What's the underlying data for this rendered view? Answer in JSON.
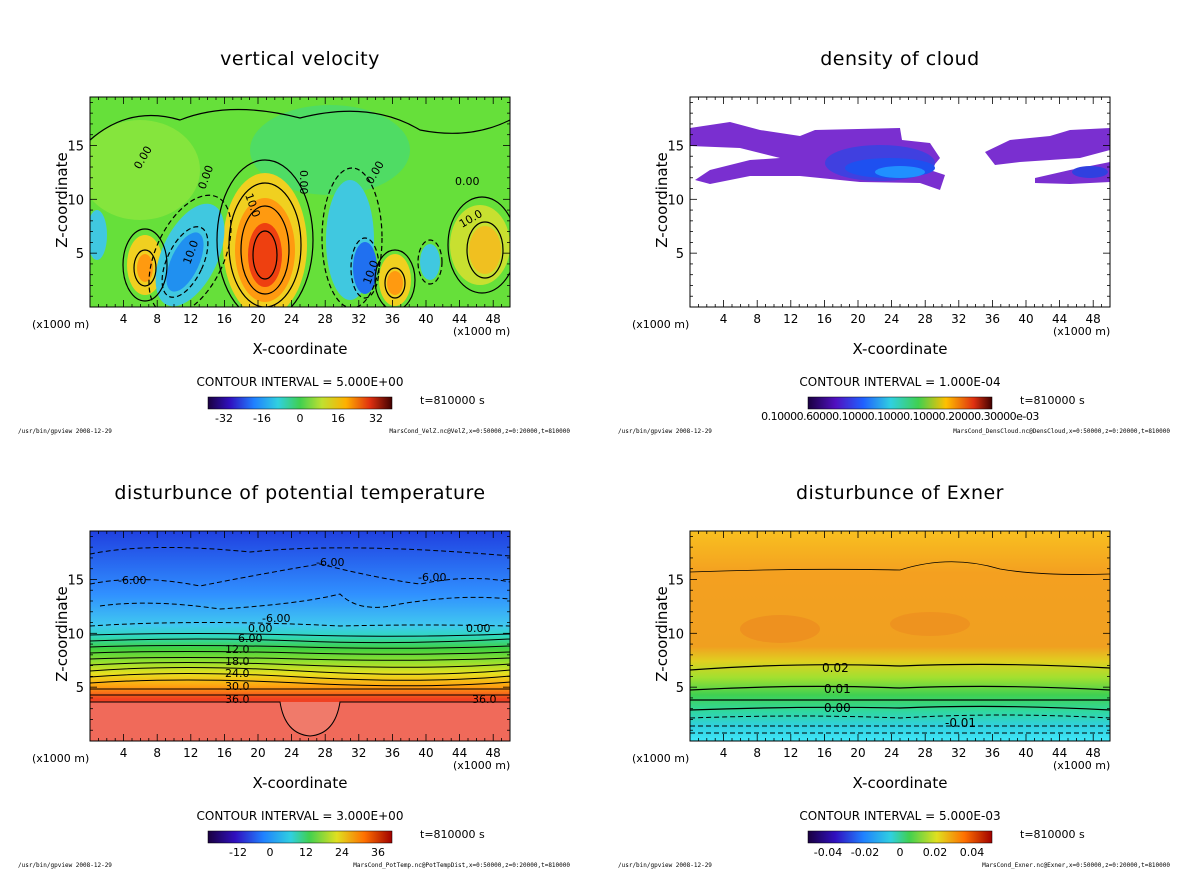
{
  "chart_data": [
    {
      "type": "heatmap",
      "title": "vertical velocity",
      "xlabel": "X-coordinate",
      "ylabel": "Z-coordinate",
      "x_unit_left": "(x1000 m)",
      "x_unit_right": "(x1000 m)",
      "x_ticks": [
        "4",
        "8",
        "12",
        "16",
        "20",
        "24",
        "28",
        "32",
        "36",
        "40",
        "44",
        "48"
      ],
      "y_ticks": [
        "5",
        "10",
        "15"
      ],
      "xlim": [
        0,
        50
      ],
      "ylim": [
        0,
        19.5
      ],
      "contour_interval": "CONTOUR INTERVAL = 5.000E+00",
      "time": "t=810000 s",
      "colorbar_ticks": [
        "-32",
        "-16",
        "0",
        "16",
        "32"
      ],
      "colorbar_range": [
        -40,
        40
      ],
      "contour_labels": [
        "0.00",
        "0.00",
        "0.00",
        "0.00",
        "0.00",
        "10.0",
        "10.0",
        "10.0",
        "10.0"
      ],
      "footer_path": "/usr/bin/gpview  2008-12-29",
      "footer_source": "MarsCond_VelZ.nc@VelZ,x=0:50000,z=0:20000,t=810000"
    },
    {
      "type": "heatmap",
      "title": "density of cloud",
      "xlabel": "X-coordinate",
      "ylabel": "Z-coordinate",
      "x_unit_left": "(x1000 m)",
      "x_unit_right": "(x1000 m)",
      "x_ticks": [
        "4",
        "8",
        "12",
        "16",
        "20",
        "24",
        "28",
        "32",
        "36",
        "40",
        "44",
        "48"
      ],
      "y_ticks": [
        "5",
        "10",
        "15"
      ],
      "xlim": [
        0,
        50
      ],
      "ylim": [
        0,
        19.5
      ],
      "contour_interval": "CONTOUR INTERVAL = 1.000E-04",
      "time": "t=810000 s",
      "colorbar_ticks": [],
      "colorbar_overlap_label": "0.10000.60000.10000.10000.10000.20000.30000e-03",
      "contour_labels": [],
      "footer_path": "/usr/bin/gpview  2008-12-29",
      "footer_source": "MarsCond_DensCloud.nc@DensCloud,x=0:50000,z=0:20000,t=810000"
    },
    {
      "type": "heatmap",
      "title": "disturbunce of potential temperature",
      "xlabel": "X-coordinate",
      "ylabel": "Z-coordinate",
      "x_unit_left": "(x1000 m)",
      "x_unit_right": "(x1000 m)",
      "x_ticks": [
        "4",
        "8",
        "12",
        "16",
        "20",
        "24",
        "28",
        "32",
        "36",
        "40",
        "44",
        "48"
      ],
      "y_ticks": [
        "5",
        "10",
        "15"
      ],
      "xlim": [
        0,
        50
      ],
      "ylim": [
        0,
        19.5
      ],
      "contour_interval": "CONTOUR INTERVAL = 3.000E+00",
      "time": "t=810000 s",
      "colorbar_ticks": [
        "-12",
        "0",
        "12",
        "24",
        "36"
      ],
      "colorbar_range": [
        -18,
        42
      ],
      "contour_labels": [
        "-6.00",
        "-6.00",
        "-6.00",
        "-6.00",
        "0.00",
        "0.00",
        "6.00",
        "12.0",
        "18.0",
        "24.0",
        "30.0",
        "36.0",
        "36.0"
      ],
      "footer_path": "/usr/bin/gpview  2008-12-29",
      "footer_source": "MarsCond_PotTemp.nc@PotTempDist,x=0:50000,z=0:20000,t=810000"
    },
    {
      "type": "heatmap",
      "title": "disturbunce of Exner",
      "xlabel": "X-coordinate",
      "ylabel": "Z-coordinate",
      "x_unit_left": "(x1000 m)",
      "x_unit_right": "(x1000 m)",
      "x_ticks": [
        "4",
        "8",
        "12",
        "16",
        "20",
        "24",
        "28",
        "32",
        "36",
        "40",
        "44",
        "48"
      ],
      "y_ticks": [
        "5",
        "10",
        "15"
      ],
      "xlim": [
        0,
        50
      ],
      "ylim": [
        0,
        19.5
      ],
      "contour_interval": "CONTOUR INTERVAL = 5.000E-03",
      "time": "t=810000 s",
      "colorbar_ticks": [
        "-0.04",
        "-0.02",
        "0",
        "0.02",
        "0.04"
      ],
      "colorbar_range": [
        -0.05,
        0.05
      ],
      "contour_labels": [
        "0.02",
        "0.01",
        "0.00",
        "-0.01"
      ],
      "footer_path": "/usr/bin/gpview  2008-12-29",
      "footer_source": "MarsCond_Exner.nc@Exner,x=0:50000,z=0:20000,t=810000"
    }
  ],
  "colors": {
    "velocity_bg": "#66e03a",
    "cloud_purple": "#7a2fd0",
    "cloud_blue": "#1e3fe0",
    "exner_bg": "#f0a020"
  }
}
